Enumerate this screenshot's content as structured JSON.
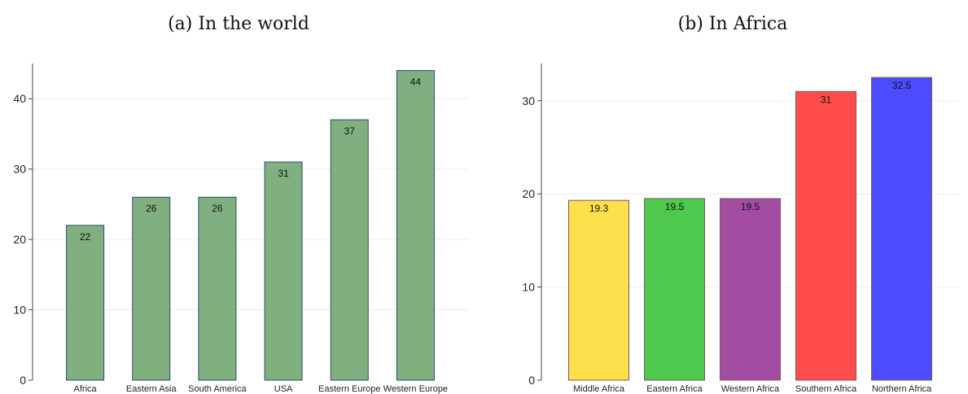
{
  "chart_data": [
    {
      "type": "bar",
      "title": "(a) In the world",
      "categories": [
        "Africa",
        "Eastern Asia",
        "South America",
        "USA",
        "Eastern Europe",
        "Western Europe"
      ],
      "values": [
        22,
        26,
        26,
        31,
        37,
        44
      ],
      "data_labels": [
        "22",
        "26",
        "26",
        "31",
        "37",
        "44"
      ],
      "ylim": [
        0,
        45
      ],
      "yticks": [
        0,
        10,
        20,
        30,
        40
      ],
      "grid": true,
      "colors": [
        "#80b080",
        "#80b080",
        "#80b080",
        "#80b080",
        "#80b080",
        "#80b080"
      ],
      "bar_edge_color": "#2c4a6e"
    },
    {
      "type": "bar",
      "title": "(b) In Africa",
      "categories": [
        "Middle Africa",
        "Eastern Africa",
        "Western Africa",
        "Southern Africa",
        "Northern Africa"
      ],
      "values": [
        19.3,
        19.5,
        19.5,
        31,
        32.5
      ],
      "data_labels": [
        "19.3",
        "19.5",
        "19.5",
        "31",
        "32.5"
      ],
      "ylim": [
        0,
        34
      ],
      "yticks": [
        0,
        10,
        20,
        30
      ],
      "grid": true,
      "colors": [
        "#fde04c",
        "#4ec94e",
        "#a24ca2",
        "#ff4c4c",
        "#4c4cff"
      ],
      "bar_edge_color": "#7a5a5a"
    }
  ]
}
